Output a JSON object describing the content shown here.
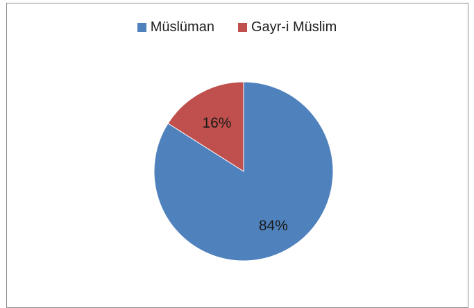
{
  "chart_data": {
    "type": "pie",
    "categories": [
      "Müslüman",
      "Gayr-i Müslim"
    ],
    "values": [
      84,
      16
    ],
    "labels": [
      "84%",
      "16%"
    ],
    "colors": [
      "#4f81bd",
      "#c0504d"
    ],
    "legend_position": "top",
    "title": ""
  }
}
